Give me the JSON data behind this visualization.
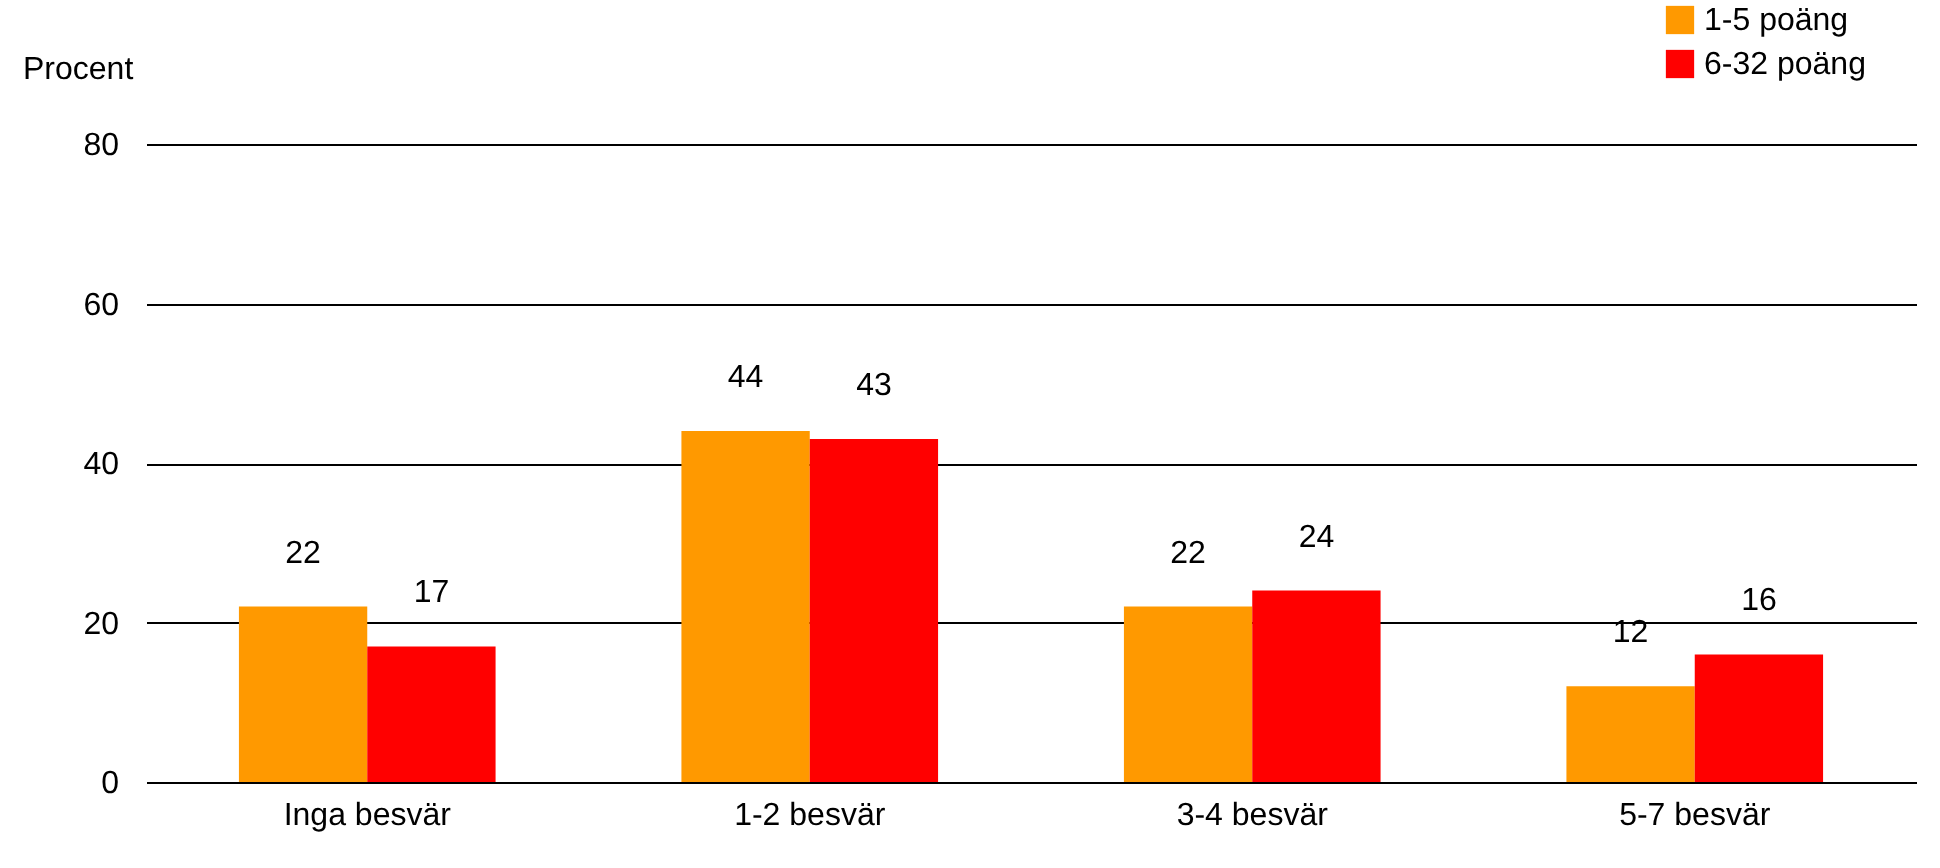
{
  "chart_data": {
    "type": "bar",
    "ylabel": "Procent",
    "categories": [
      "Inga besvär",
      "1-2 besvär",
      "3-4 besvär",
      "5-7 besvär"
    ],
    "series": [
      {
        "name": "1-5 poäng",
        "color": "#ff9900",
        "values": [
          22,
          44,
          22,
          12
        ]
      },
      {
        "name": "6-32 poäng",
        "color": "#ff0000",
        "values": [
          17,
          43,
          24,
          16
        ]
      }
    ],
    "ylim": [
      0,
      80
    ],
    "yticks": [
      0,
      20,
      40,
      60,
      80
    ],
    "grid": "y",
    "legend": "top right",
    "data_labels": true
  }
}
